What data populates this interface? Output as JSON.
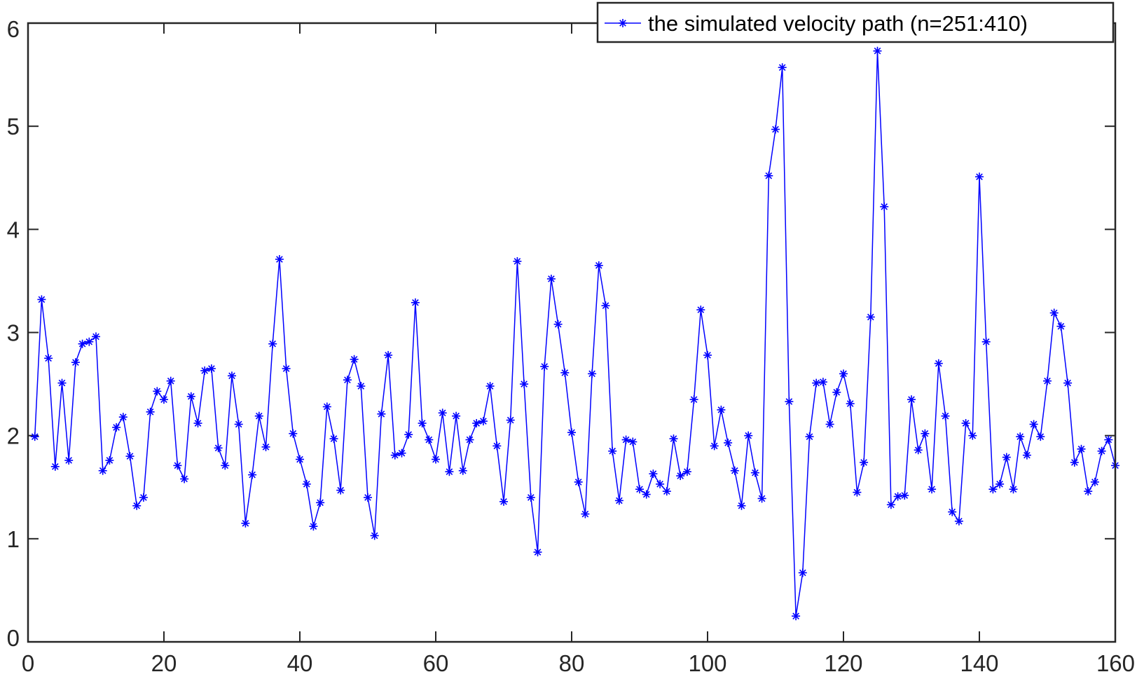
{
  "chart_data": {
    "type": "line",
    "title": "",
    "xlabel": "",
    "ylabel": "",
    "xlim": [
      0,
      160
    ],
    "ylim": [
      0,
      6
    ],
    "xticks": [
      "0",
      "20",
      "40",
      "60",
      "80",
      "100",
      "120",
      "140",
      "160"
    ],
    "yticks": [
      "0",
      "1",
      "2",
      "3",
      "4",
      "5",
      "6"
    ],
    "grid": false,
    "legend_position": "top-right",
    "marker": "asterisk",
    "series": [
      {
        "name": "the simulated velocity path (n=251:410)",
        "color": "#0000ff",
        "x": [
          1,
          2,
          3,
          4,
          5,
          6,
          7,
          8,
          9,
          10,
          11,
          12,
          13,
          14,
          15,
          16,
          17,
          18,
          19,
          20,
          21,
          22,
          23,
          24,
          25,
          26,
          27,
          28,
          29,
          30,
          31,
          32,
          33,
          34,
          35,
          36,
          37,
          38,
          39,
          40,
          41,
          42,
          43,
          44,
          45,
          46,
          47,
          48,
          49,
          50,
          51,
          52,
          53,
          54,
          55,
          56,
          57,
          58,
          59,
          60,
          61,
          62,
          63,
          64,
          65,
          66,
          67,
          68,
          69,
          70,
          71,
          72,
          73,
          74,
          75,
          76,
          77,
          78,
          79,
          80,
          81,
          82,
          83,
          84,
          85,
          86,
          87,
          88,
          89,
          90,
          91,
          92,
          93,
          94,
          95,
          96,
          97,
          98,
          99,
          100,
          101,
          102,
          103,
          104,
          105,
          106,
          107,
          108,
          109,
          110,
          111,
          112,
          113,
          114,
          115,
          116,
          117,
          118,
          119,
          120,
          121,
          122,
          123,
          124,
          125,
          126,
          127,
          128,
          129,
          130,
          131,
          132,
          133,
          134,
          135,
          136,
          137,
          138,
          139,
          140,
          141,
          142,
          143,
          144,
          145,
          146,
          147,
          148,
          149,
          150,
          151,
          152,
          153,
          154,
          155,
          156,
          157,
          158,
          159,
          160
        ],
        "y": [
          1.99,
          3.32,
          2.75,
          1.7,
          2.51,
          1.76,
          2.71,
          2.89,
          2.91,
          2.96,
          1.66,
          1.76,
          2.08,
          2.18,
          1.8,
          1.32,
          1.4,
          2.23,
          2.43,
          2.35,
          2.53,
          1.71,
          1.58,
          2.38,
          2.12,
          2.63,
          2.65,
          1.88,
          1.71,
          2.58,
          2.11,
          1.15,
          1.62,
          2.19,
          1.89,
          2.89,
          3.71,
          2.65,
          2.02,
          1.77,
          1.53,
          1.12,
          1.35,
          2.28,
          1.97,
          1.47,
          2.54,
          2.74,
          2.48,
          1.4,
          1.03,
          2.21,
          2.78,
          1.81,
          1.83,
          2.01,
          3.29,
          2.12,
          1.96,
          1.77,
          2.22,
          1.65,
          2.19,
          1.66,
          1.96,
          2.12,
          2.14,
          2.48,
          1.9,
          1.36,
          2.15,
          3.69,
          2.5,
          1.4,
          0.87,
          2.67,
          3.52,
          3.08,
          2.61,
          2.03,
          1.55,
          1.24,
          2.6,
          3.65,
          3.26,
          1.85,
          1.37,
          1.96,
          1.94,
          1.48,
          1.43,
          1.63,
          1.53,
          1.46,
          1.97,
          1.61,
          1.65,
          2.35,
          3.22,
          2.78,
          1.9,
          2.25,
          1.93,
          1.66,
          1.32,
          2.0,
          1.64,
          1.39,
          4.52,
          4.97,
          5.57,
          2.33,
          0.25,
          0.67,
          1.99,
          2.51,
          2.52,
          2.11,
          2.42,
          2.6,
          2.31,
          1.45,
          1.74,
          3.15,
          5.73,
          4.22,
          1.33,
          1.41,
          1.42,
          2.35,
          1.86,
          2.02,
          1.48,
          2.7,
          2.19,
          1.26,
          1.17,
          2.12,
          2.0,
          4.51,
          2.91,
          1.48,
          1.53,
          1.79,
          1.48,
          1.99,
          1.81,
          2.11,
          1.99,
          2.53,
          3.19,
          3.06,
          2.51,
          1.74,
          1.87,
          1.46,
          1.55,
          1.85,
          1.96,
          1.71
        ]
      }
    ]
  }
}
